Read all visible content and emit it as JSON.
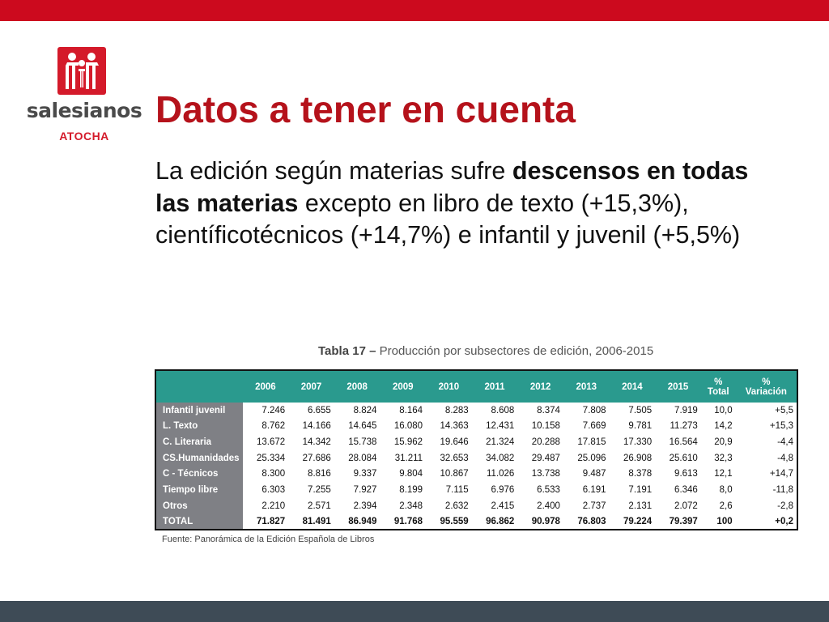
{
  "logo": {
    "wordmark": "salesianos",
    "subtitle": "ATOCHA",
    "icon": "salesianos-people-logo-icon"
  },
  "slide": {
    "title": "Datos a tener en cuenta",
    "body": {
      "p1": "La edición según  materias sufre ",
      "b1": "descensos en todas las materias",
      "p2": " excepto en libro de texto (+15,3%), científicotécnicos (+14,7%) e infantil y juvenil (+5,5%)"
    }
  },
  "table": {
    "caption_label": "Tabla 17 –",
    "caption_text": " Producción por subsectores de edición, 2006-2015",
    "headers": [
      "2006",
      "2007",
      "2008",
      "2009",
      "2010",
      "2011",
      "2012",
      "2013",
      "2014",
      "2015"
    ],
    "pct_header": [
      "%",
      "Total"
    ],
    "var_header": [
      "%",
      "Variación"
    ],
    "rows": [
      {
        "label": "Infantil juvenil",
        "values": [
          "7.246",
          "6.655",
          "8.824",
          "8.164",
          "8.283",
          "8.608",
          "8.374",
          "7.808",
          "7.505",
          "7.919"
        ],
        "pct": "10,0",
        "var": "+5,5"
      },
      {
        "label": "L. Texto",
        "values": [
          "8.762",
          "14.166",
          "14.645",
          "16.080",
          "14.363",
          "12.431",
          "10.158",
          "7.669",
          "9.781",
          "11.273"
        ],
        "pct": "14,2",
        "var": "+15,3"
      },
      {
        "label": "C. Literaria",
        "values": [
          "13.672",
          "14.342",
          "15.738",
          "15.962",
          "19.646",
          "21.324",
          "20.288",
          "17.815",
          "17.330",
          "16.564"
        ],
        "pct": "20,9",
        "var": "-4,4"
      },
      {
        "label": "CS.Humanidades",
        "values": [
          "25.334",
          "27.686",
          "28.084",
          "31.211",
          "32.653",
          "34.082",
          "29.487",
          "25.096",
          "26.908",
          "25.610"
        ],
        "pct": "32,3",
        "var": "-4,8"
      },
      {
        "label": "C - Técnicos",
        "values": [
          "8.300",
          "8.816",
          "9.337",
          "9.804",
          "10.867",
          "11.026",
          "13.738",
          "9.487",
          "8.378",
          "9.613"
        ],
        "pct": "12,1",
        "var": "+14,7"
      },
      {
        "label": "Tiempo libre",
        "values": [
          "6.303",
          "7.255",
          "7.927",
          "8.199",
          "7.115",
          "6.976",
          "6.533",
          "6.191",
          "7.191",
          "6.346"
        ],
        "pct": "8,0",
        "var": "-11,8"
      },
      {
        "label": "Otros",
        "values": [
          "2.210",
          "2.571",
          "2.394",
          "2.348",
          "2.632",
          "2.415",
          "2.400",
          "2.737",
          "2.131",
          "2.072"
        ],
        "pct": "2,6",
        "var": "-2,8"
      },
      {
        "label": "TOTAL",
        "values": [
          "71.827",
          "81.491",
          "86.949",
          "91.768",
          "95.559",
          "96.862",
          "90.978",
          "76.803",
          "79.224",
          "79.397"
        ],
        "pct": "100",
        "var": "+0,2"
      }
    ],
    "source": "Fuente: Panorámica de la Edición Española de Libros"
  },
  "colors": {
    "brand_red": "#cc0a1e",
    "title_red": "#b5121b",
    "header_teal": "#2a9a8e",
    "label_gray": "#7f8085",
    "footer_slate": "#3e4b56"
  }
}
